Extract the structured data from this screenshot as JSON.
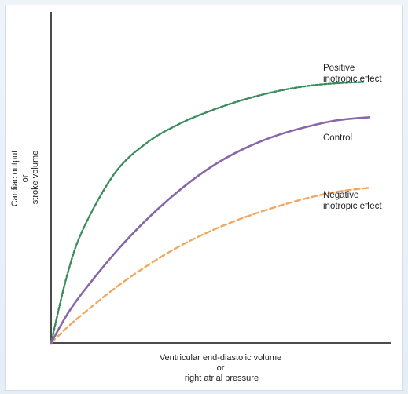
{
  "chart_data": {
    "type": "line",
    "title": "",
    "xlabel_lines": [
      "Ventricular end-diastolic volume",
      "or",
      "right atrial pressure"
    ],
    "ylabel_lines": [
      "Cardiac output",
      "or",
      "stroke volume"
    ],
    "xlim": [
      0,
      100
    ],
    "ylim": [
      0,
      100
    ],
    "grid": false,
    "series": [
      {
        "key": "positive",
        "label_lines": [
          "Positive",
          "inotropic effect"
        ],
        "color": "#3a8c5c",
        "style": "dotted",
        "x": [
          0,
          5,
          10,
          20,
          30,
          40,
          50,
          60,
          70,
          80,
          90,
          98
        ],
        "y": [
          0,
          24.5,
          41.3,
          61.8,
          72.8,
          79.6,
          84.5,
          88.4,
          91.4,
          93.5,
          94.6,
          95
        ]
      },
      {
        "key": "control",
        "label_lines": [
          "Control"
        ],
        "color": "#8866aa",
        "style": "solid",
        "x": [
          0,
          5,
          10,
          20,
          30,
          40,
          50,
          60,
          70,
          80,
          90,
          100
        ],
        "y": [
          0,
          10.3,
          18.5,
          32.7,
          44.9,
          55.3,
          63.9,
          70.4,
          75.2,
          78.6,
          81.1,
          82.2
        ]
      },
      {
        "key": "negative",
        "label_lines": [
          "Negative",
          "inotropic effect"
        ],
        "color": "#f0a860",
        "style": "dashed",
        "x": [
          0,
          5,
          10,
          20,
          30,
          40,
          50,
          60,
          70,
          80,
          90,
          100
        ],
        "y": [
          0,
          5.6,
          10.6,
          19.9,
          28.0,
          35.0,
          40.7,
          45.4,
          49.3,
          52.6,
          55.1,
          56.5
        ]
      }
    ]
  }
}
